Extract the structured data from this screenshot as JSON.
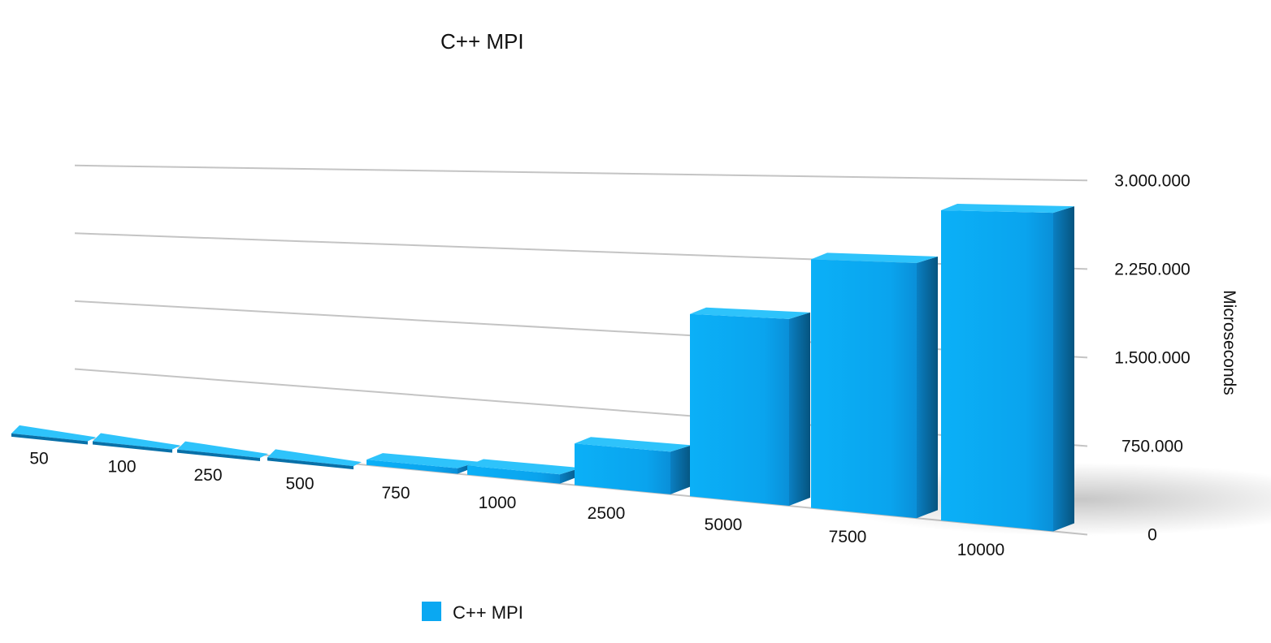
{
  "chart_data": {
    "type": "bar",
    "title": "C++ MPI",
    "ylabel": "Microseconds",
    "xlabel": "",
    "categories": [
      "50",
      "100",
      "250",
      "500",
      "750",
      "1000",
      "2500",
      "5000",
      "7500",
      "10000"
    ],
    "series": [
      {
        "name": "C++ MPI",
        "values": [
          1500,
          4000,
          10000,
          25000,
          55000,
          90000,
          400000,
          1700000,
          2250000,
          2720000
        ]
      }
    ],
    "y_ticks": [
      "0",
      "750.000",
      "1.500.000",
      "2.250.000",
      "3.000.000"
    ],
    "ylim": [
      0,
      3000000
    ],
    "grid": true,
    "legend_position": "bottom-left",
    "colors": {
      "bar_front": "#0aa8f2",
      "bar_top": "#2ec3fb",
      "bar_side": "#0870a8",
      "grid": "#c4c4c4"
    }
  }
}
